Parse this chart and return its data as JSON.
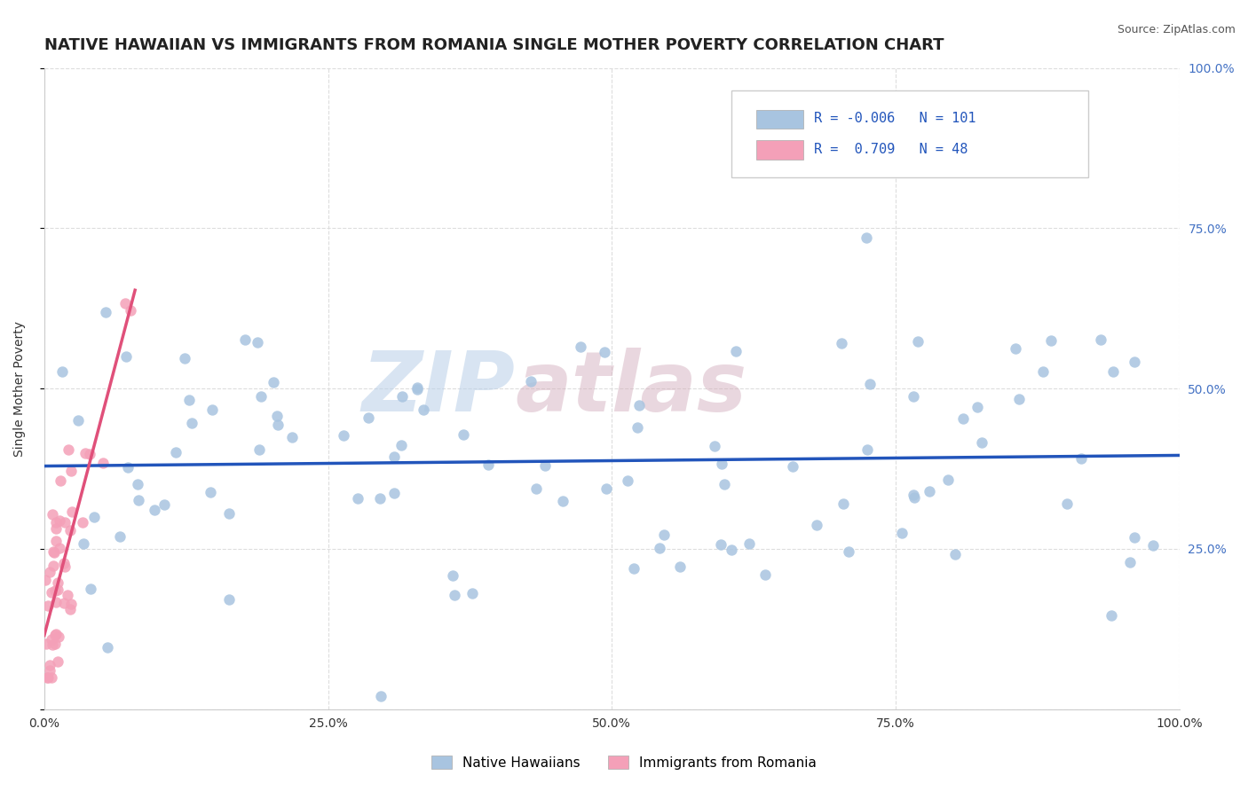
{
  "title": "NATIVE HAWAIIAN VS IMMIGRANTS FROM ROMANIA SINGLE MOTHER POVERTY CORRELATION CHART",
  "source": "Source: ZipAtlas.com",
  "xlabel": "",
  "ylabel": "Single Mother Poverty",
  "watermark_zip": "ZIP",
  "watermark_atlas": "atlas",
  "blue_R": -0.006,
  "blue_N": 101,
  "pink_R": 0.709,
  "pink_N": 48,
  "blue_color": "#a8c4e0",
  "pink_color": "#f4a0b8",
  "blue_line_color": "#2255bb",
  "pink_line_color": "#e0507a",
  "xlim": [
    0.0,
    1.0
  ],
  "ylim": [
    0.0,
    1.0
  ],
  "xticks": [
    0.0,
    0.25,
    0.5,
    0.75,
    1.0
  ],
  "yticks": [
    0.0,
    0.25,
    0.5,
    0.75,
    1.0
  ],
  "xticklabels": [
    "0.0%",
    "25.0%",
    "50.0%",
    "75.0%",
    "100.0%"
  ],
  "yticklabels": [
    "",
    "25.0%",
    "50.0%",
    "75.0%",
    "100.0%"
  ],
  "background_color": "#ffffff",
  "grid_color": "#dddddd",
  "title_fontsize": 13,
  "axis_fontsize": 10,
  "legend_fontsize": 11,
  "tick_fontsize": 10,
  "right_tick_color": "#4472c4"
}
